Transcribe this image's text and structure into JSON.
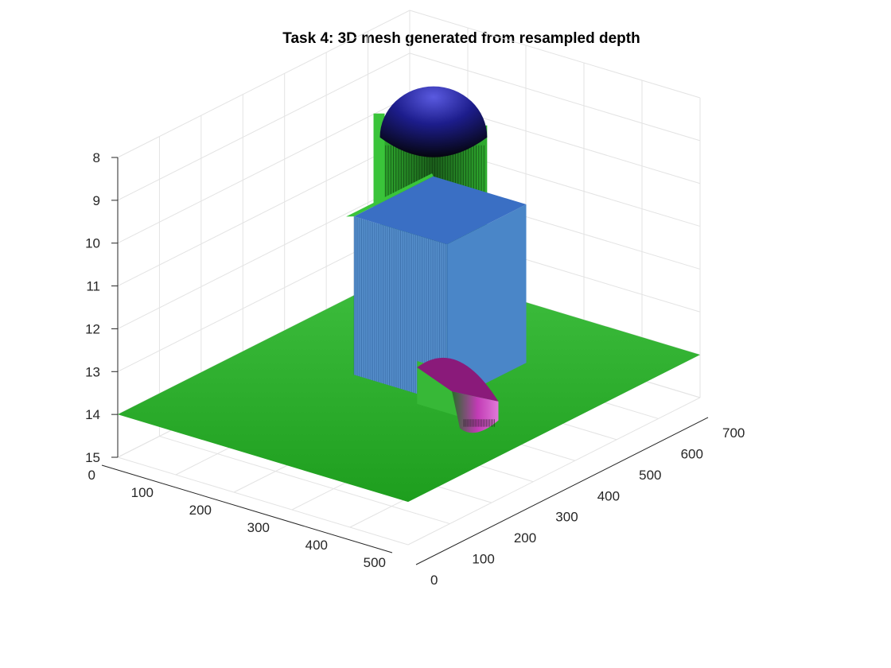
{
  "chart_data": {
    "type": "surface",
    "title": "Task 4: 3D mesh generated from resampled depth",
    "xlabel": "",
    "ylabel": "",
    "zlabel": "",
    "xlim": [
      0,
      700
    ],
    "ylim": [
      0,
      500
    ],
    "zlim": [
      8,
      15
    ],
    "z_reversed": true,
    "grid": true,
    "x_ticks": [
      "0",
      "100",
      "200",
      "300",
      "400",
      "500",
      "600",
      "700"
    ],
    "y_ticks": [
      "0",
      "100",
      "200",
      "300",
      "400",
      "500"
    ],
    "z_ticks": [
      "8",
      "9",
      "10",
      "11",
      "12",
      "13",
      "14",
      "15"
    ],
    "background_depth": 14,
    "objects": [
      {
        "name": "sphere-cylinder",
        "shape": "cylinder-dome",
        "x_center": 590,
        "y_center": 120,
        "radius": 75,
        "top_depth": 9.3,
        "top_color": "#1d1d8c",
        "side_color": "#2fae2f"
      },
      {
        "name": "box",
        "shape": "box",
        "x_range": [
          330,
          520
        ],
        "y_range": [
          170,
          330
        ],
        "top_depth": 10.3,
        "top_color": "#3a6fc4",
        "side_color": "#4a86c8"
      },
      {
        "name": "half-cylinder",
        "shape": "half-cylinder",
        "x_range": [
          300,
          420
        ],
        "y_range": [
          300,
          440
        ],
        "top_depth": 13.0,
        "top_color": "#8a1a7a",
        "side_color": "#c23bb5"
      }
    ],
    "colors": {
      "floor_light": "#3fbf3f",
      "floor_dark": "#1e9e1e",
      "green_side": "#2fae2f"
    }
  }
}
